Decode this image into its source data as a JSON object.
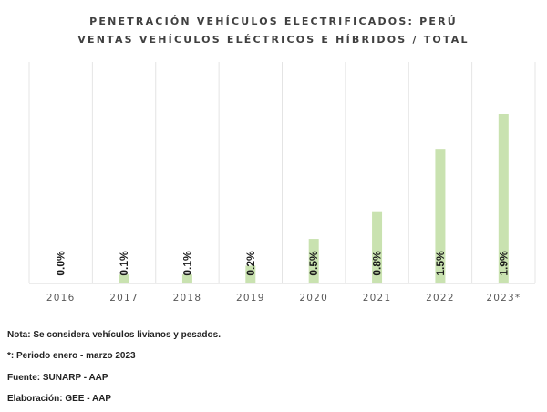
{
  "chart_data": {
    "type": "bar",
    "title": "PENETRACIÓN VEHÍCULOS ELECTRIFICADOS: PERÚ",
    "subtitle": "VENTAS VEHÍCULOS ELÉCTRICOS E HÍBRIDOS / TOTAL",
    "categories": [
      "2016",
      "2017",
      "2018",
      "2019",
      "2020",
      "2021",
      "2022",
      "2023*"
    ],
    "values": [
      0.0,
      0.1,
      0.1,
      0.2,
      0.5,
      0.8,
      1.5,
      1.9
    ],
    "data_labels": [
      "0.0%",
      "0.1%",
      "0.1%",
      "0.2%",
      "0.5%",
      "0.8%",
      "1.5%",
      "1.9%"
    ],
    "ylim": [
      0,
      2.25
    ],
    "grid": "vertical category separators",
    "bar_color": "#c9e2b0"
  },
  "notes": {
    "nota": "Nota: Se considera vehículos livianos y pesados.",
    "periodo": "*: Periodo enero - marzo 2023",
    "fuente": "Fuente: SUNARP - AAP",
    "elaboracion": "Elaboración: GEE - AAP"
  }
}
